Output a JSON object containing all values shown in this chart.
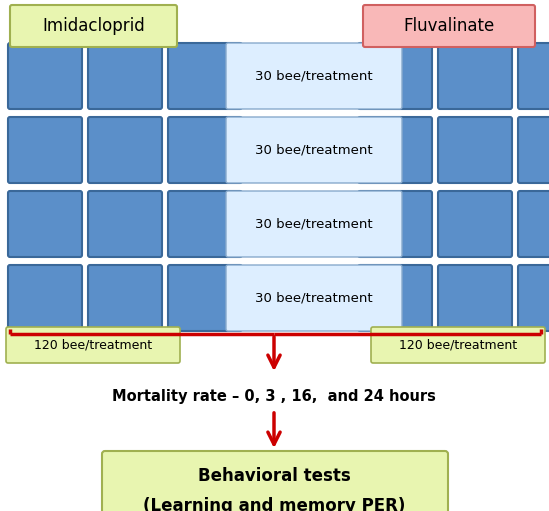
{
  "bg_color": "#ffffff",
  "fig_width": 5.49,
  "fig_height": 5.11,
  "imidacloprid_label": "Imidacloprid",
  "fluvalinate_label": "Fluvalinate",
  "imidacloprid_box_facecolor": "#e8f5b0",
  "imidacloprid_box_edgecolor": "#a0b050",
  "fluvalinate_box_facecolor": "#f9b8b8",
  "fluvalinate_box_edgecolor": "#d06060",
  "bee_box_facecolor": "#5b8fc9",
  "bee_box_edgecolor": "#3a6899",
  "center_box_facecolor": "#ddeeff",
  "center_box_edgecolor": "#88aacc",
  "bottom_label_facecolor": "#e8f5b0",
  "bottom_label_edgecolor": "#a0b050",
  "behavioral_facecolor": "#e8f5b0",
  "behavioral_edgecolor": "#a0b050",
  "bee_text": "30 bee/treatment",
  "left_total": "120 bee/treatment",
  "right_total": "120 bee/treatment",
  "mortality_text": "Mortality rate – 0, 3 , 16,  and 24 hours",
  "behavioral_line1": "Behavioral tests",
  "behavioral_line2": "(Learning and memory PER)",
  "arrow_color": "#cc0000"
}
